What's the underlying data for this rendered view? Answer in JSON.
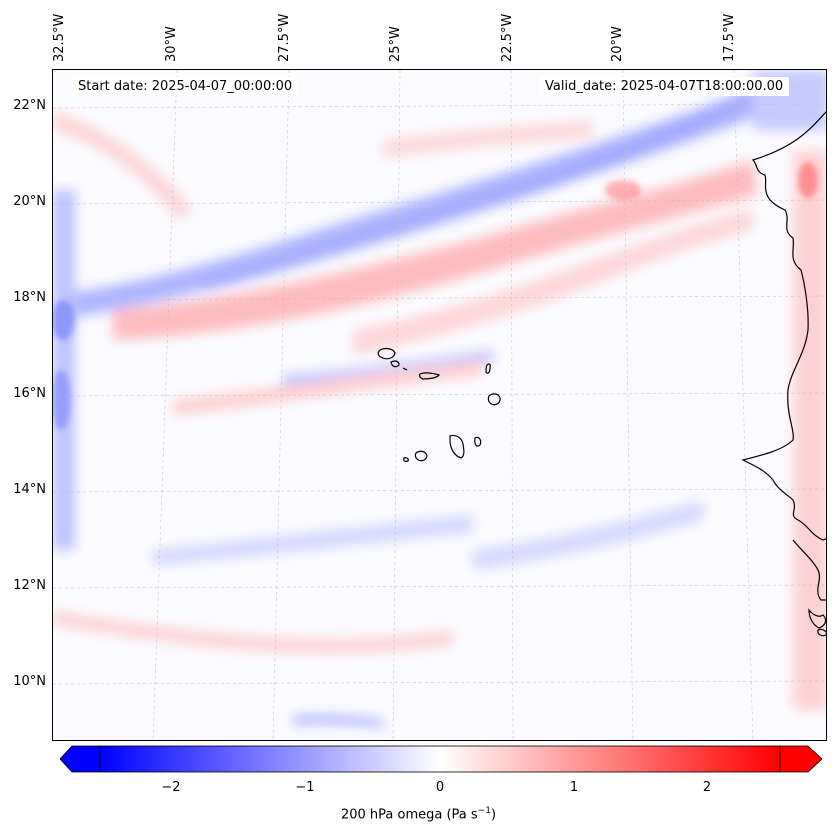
{
  "map": {
    "start_date": "Start date: 2025-04-07_00:00:00",
    "valid_date": "Valid_date: 2025-04-07T18:00:00.00",
    "lon_labels": [
      "32.5°W",
      "30°W",
      "27.5°W",
      "25°W",
      "22.5°W",
      "20°W",
      "17.5°W"
    ],
    "lat_labels": [
      "22°N",
      "20°N",
      "18°N",
      "16°N",
      "14°N",
      "12°N",
      "10°N"
    ],
    "extent": {
      "lon_min": -33.0,
      "lon_max": -15.0,
      "lat_min": 8.8,
      "lat_max": 22.8
    },
    "colors": {
      "negative": "#0000ff",
      "zero": "#ffffff",
      "positive": "#ff0000",
      "coastline": "#000000"
    }
  },
  "colorbar": {
    "label": "200 hPa omega (Pa s",
    "label_sup": "−1",
    "label_end": ")",
    "range": [
      -2.6,
      2.6
    ],
    "ticks": [
      {
        "value": -2,
        "label": "−2"
      },
      {
        "value": -1,
        "label": "−1"
      },
      {
        "value": 0,
        "label": "0"
      },
      {
        "value": 1,
        "label": "1"
      },
      {
        "value": 2,
        "label": "2"
      }
    ]
  }
}
